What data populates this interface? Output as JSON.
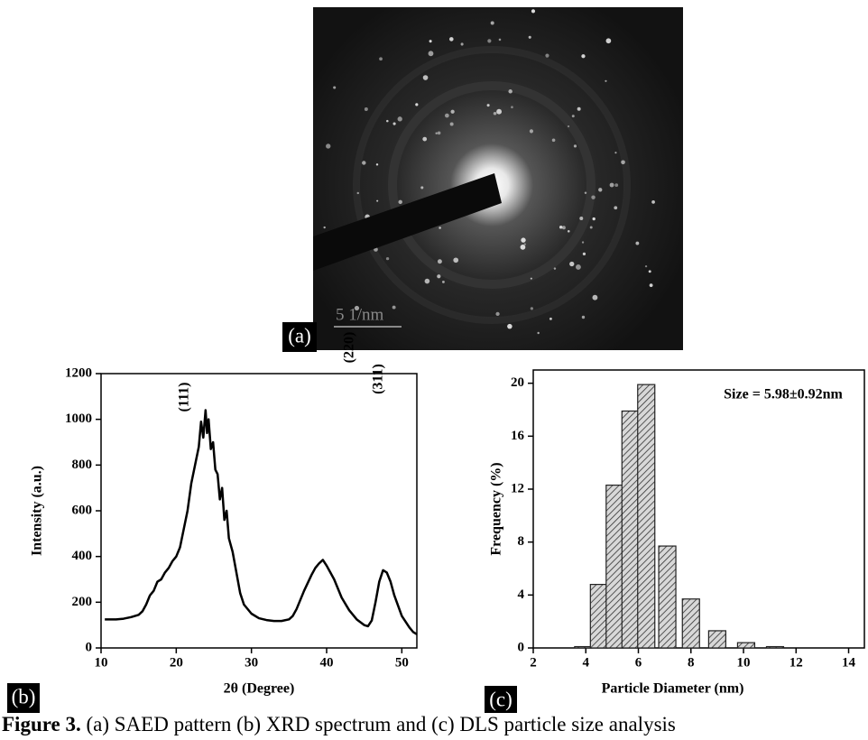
{
  "panel_a": {
    "label": "(a)",
    "scale_bar": "5 1/nm"
  },
  "chart_data": [
    {
      "type": "line",
      "panel_label": "(b)",
      "xlabel": "2θ (Degree)",
      "ylabel": "Intensity (a.u.)",
      "annotations": [
        "(111)",
        "(220)",
        "(311)"
      ],
      "color": "#000000",
      "x": [
        10.5,
        12,
        13,
        14,
        15,
        15.5,
        16,
        16.5,
        17,
        17.5,
        18,
        18.5,
        19,
        19.5,
        20,
        20.5,
        21,
        21.5,
        22,
        22.5,
        23,
        23.3,
        23.6,
        23.9,
        24.1,
        24.3,
        24.6,
        24.9,
        25.2,
        25.5,
        25.8,
        26.1,
        26.4,
        26.7,
        27,
        27.5,
        28,
        28.5,
        29,
        30,
        31,
        32,
        33,
        34,
        35,
        35.5,
        36,
        37,
        38,
        38.5,
        39,
        39.5,
        40,
        40.5,
        41,
        42,
        43,
        44,
        45,
        45.5,
        46,
        46.5,
        47,
        47.5,
        48,
        48.5,
        49,
        50,
        51,
        51.5,
        52
      ],
      "values": [
        125,
        125,
        128,
        135,
        145,
        160,
        190,
        230,
        250,
        290,
        300,
        330,
        350,
        380,
        400,
        440,
        520,
        600,
        720,
        800,
        880,
        990,
        920,
        1040,
        940,
        1000,
        870,
        900,
        780,
        760,
        650,
        700,
        560,
        600,
        480,
        420,
        330,
        240,
        190,
        150,
        130,
        122,
        118,
        118,
        125,
        140,
        170,
        250,
        320,
        350,
        370,
        385,
        360,
        330,
        300,
        220,
        165,
        125,
        100,
        95,
        120,
        200,
        290,
        340,
        330,
        290,
        230,
        140,
        90,
        70,
        60
      ],
      "xlim": [
        10,
        52
      ],
      "xticks": [
        10,
        20,
        30,
        40,
        50
      ],
      "ylim": [
        0,
        1200
      ],
      "yticks": [
        0,
        200,
        400,
        600,
        800,
        1000,
        1200
      ]
    },
    {
      "type": "bar",
      "panel_label": "(c)",
      "xlabel": "Particle Diameter (nm)",
      "ylabel": "Frequency (%)",
      "annotations": [
        "Size = 5.98±0.92nm"
      ],
      "color": "#222222",
      "x": [
        3.9,
        4.5,
        5.1,
        5.7,
        6.3,
        7.1,
        8.0,
        9.0,
        10.1,
        11.2
      ],
      "values": [
        0.1,
        4.8,
        12.3,
        17.9,
        19.9,
        7.7,
        3.7,
        1.3,
        0.4,
        0.1
      ],
      "xlim": [
        2,
        14.6
      ],
      "xticks": [
        2,
        4,
        6,
        8,
        10,
        12,
        14
      ],
      "ylim": [
        0,
        21
      ],
      "yticks": [
        0,
        4,
        8,
        12,
        16,
        20
      ]
    }
  ],
  "caption": {
    "figure": "Figure 3.",
    "text": " (a) SAED pattern (b) XRD spectrum and (c) DLS particle size analysis"
  }
}
